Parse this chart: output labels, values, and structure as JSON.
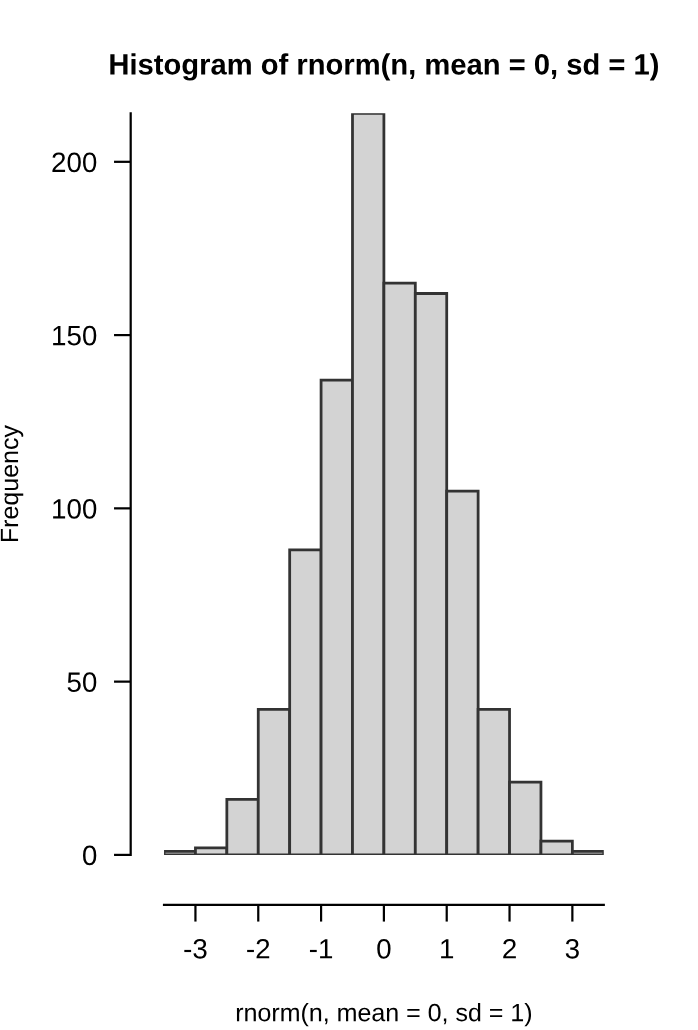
{
  "chart_data": {
    "type": "histogram",
    "title": "Histogram of rnorm(n, mean = 0, sd = 1)",
    "xlabel": "rnorm(n, mean = 0, sd = 1)",
    "ylabel": "Frequency",
    "bins": [
      -3.5,
      -3,
      -2.5,
      -2,
      -1.5,
      -1,
      -0.5,
      0,
      0.5,
      1,
      1.5,
      2,
      2.5,
      3,
      3.5
    ],
    "values": [
      1,
      2,
      16,
      42,
      88,
      137,
      214,
      165,
      162,
      105,
      42,
      21,
      4,
      1
    ],
    "color": "#d3d3d3",
    "xlim": [
      -3.5,
      3.5
    ],
    "ylim": [
      0,
      214
    ],
    "xticks": [
      -3,
      -2,
      -1,
      0,
      1,
      2,
      3
    ],
    "yticks": [
      0,
      50,
      100,
      150,
      200
    ],
    "grid": false
  }
}
